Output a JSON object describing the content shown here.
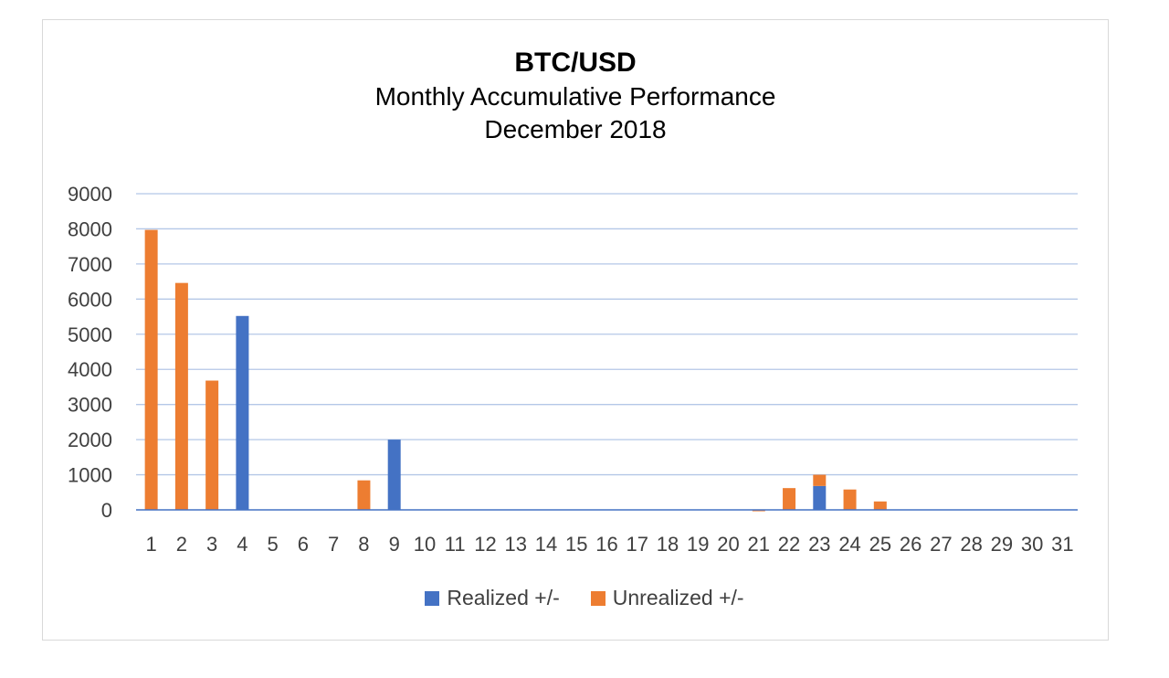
{
  "chart_data": {
    "type": "bar",
    "stacked": true,
    "title": "BTC/USD",
    "subtitle_lines": [
      "Monthly Accumulative Performance",
      "December 2018"
    ],
    "xlabel": "",
    "ylabel": "",
    "ylim": [
      0,
      9000
    ],
    "yticks": [
      0,
      1000,
      2000,
      3000,
      4000,
      5000,
      6000,
      7000,
      8000,
      9000
    ],
    "grid": true,
    "legend_position": "bottom",
    "categories": [
      "1",
      "2",
      "3",
      "4",
      "5",
      "6",
      "7",
      "8",
      "9",
      "10",
      "11",
      "12",
      "13",
      "14",
      "15",
      "16",
      "17",
      "18",
      "19",
      "20",
      "21",
      "22",
      "23",
      "24",
      "25",
      "26",
      "27",
      "28",
      "29",
      "30",
      "31"
    ],
    "series": [
      {
        "name": "Realized +/-",
        "color": "#4472c4",
        "values": [
          0,
          0,
          0,
          5520,
          0,
          0,
          0,
          0,
          2000,
          0,
          0,
          0,
          0,
          0,
          0,
          0,
          0,
          0,
          0,
          0,
          0,
          0,
          680,
          0,
          0,
          0,
          0,
          0,
          0,
          0,
          0
        ]
      },
      {
        "name": "Unrealized +/-",
        "color": "#ed7d31",
        "values": [
          7970,
          6460,
          3680,
          0,
          0,
          0,
          0,
          840,
          0,
          0,
          0,
          0,
          0,
          0,
          0,
          0,
          0,
          0,
          0,
          0,
          -40,
          620,
          320,
          580,
          240,
          0,
          0,
          0,
          0,
          0,
          0
        ]
      }
    ]
  }
}
